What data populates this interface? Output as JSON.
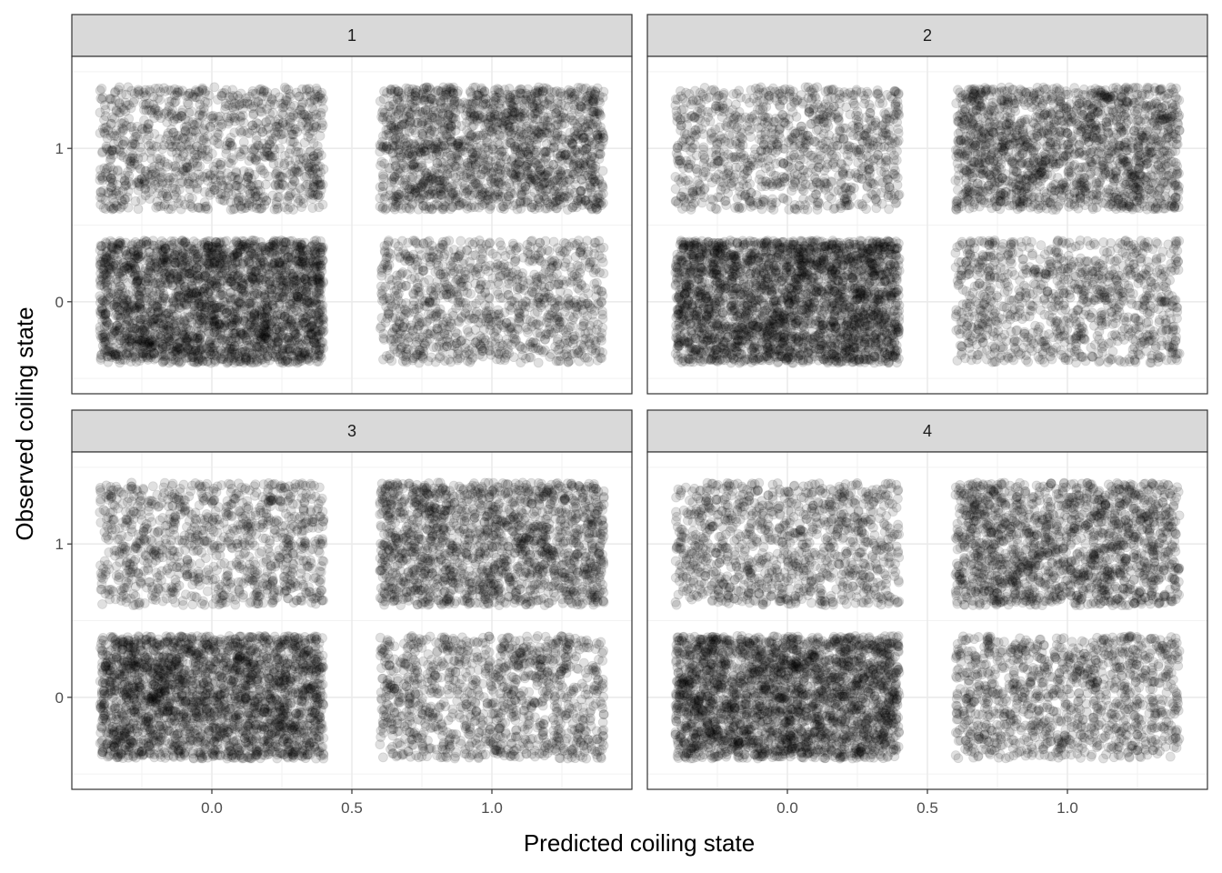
{
  "chart_data": {
    "type": "scatter",
    "facet_layout": "2x2",
    "xlabel": "Predicted coiling state",
    "ylabel": "Observed coiling state",
    "xlim": [
      -0.5,
      1.5
    ],
    "ylim": [
      -0.6,
      1.6
    ],
    "x_ticks": [
      0.0,
      0.5,
      1.0
    ],
    "x_tick_labels": [
      "0.0",
      "0.5",
      "1.0"
    ],
    "y_ticks": [
      0,
      1
    ],
    "y_tick_labels": [
      "0",
      "1"
    ],
    "jitter": 0.4,
    "point_color": "#000000",
    "point_alpha": 0.12,
    "grid": true,
    "panel_border_color": "#333333",
    "strip_fill": "#d9d9d9",
    "facets": [
      {
        "label": "1",
        "cells": [
          {
            "predicted": 0,
            "observed": 1,
            "n": 1100
          },
          {
            "predicted": 1,
            "observed": 1,
            "n": 1700
          },
          {
            "predicted": 0,
            "observed": 0,
            "n": 2600
          },
          {
            "predicted": 1,
            "observed": 0,
            "n": 1050
          }
        ]
      },
      {
        "label": "2",
        "cells": [
          {
            "predicted": 0,
            "observed": 1,
            "n": 1000
          },
          {
            "predicted": 1,
            "observed": 1,
            "n": 1700
          },
          {
            "predicted": 0,
            "observed": 0,
            "n": 2700
          },
          {
            "predicted": 1,
            "observed": 0,
            "n": 1000
          }
        ]
      },
      {
        "label": "3",
        "cells": [
          {
            "predicted": 0,
            "observed": 1,
            "n": 1000
          },
          {
            "predicted": 1,
            "observed": 1,
            "n": 1650
          },
          {
            "predicted": 0,
            "observed": 0,
            "n": 2400
          },
          {
            "predicted": 1,
            "observed": 0,
            "n": 1100
          }
        ]
      },
      {
        "label": "4",
        "cells": [
          {
            "predicted": 0,
            "observed": 1,
            "n": 1050
          },
          {
            "predicted": 1,
            "observed": 1,
            "n": 1600
          },
          {
            "predicted": 0,
            "observed": 0,
            "n": 2500
          },
          {
            "predicted": 1,
            "observed": 0,
            "n": 1100
          }
        ]
      }
    ]
  }
}
